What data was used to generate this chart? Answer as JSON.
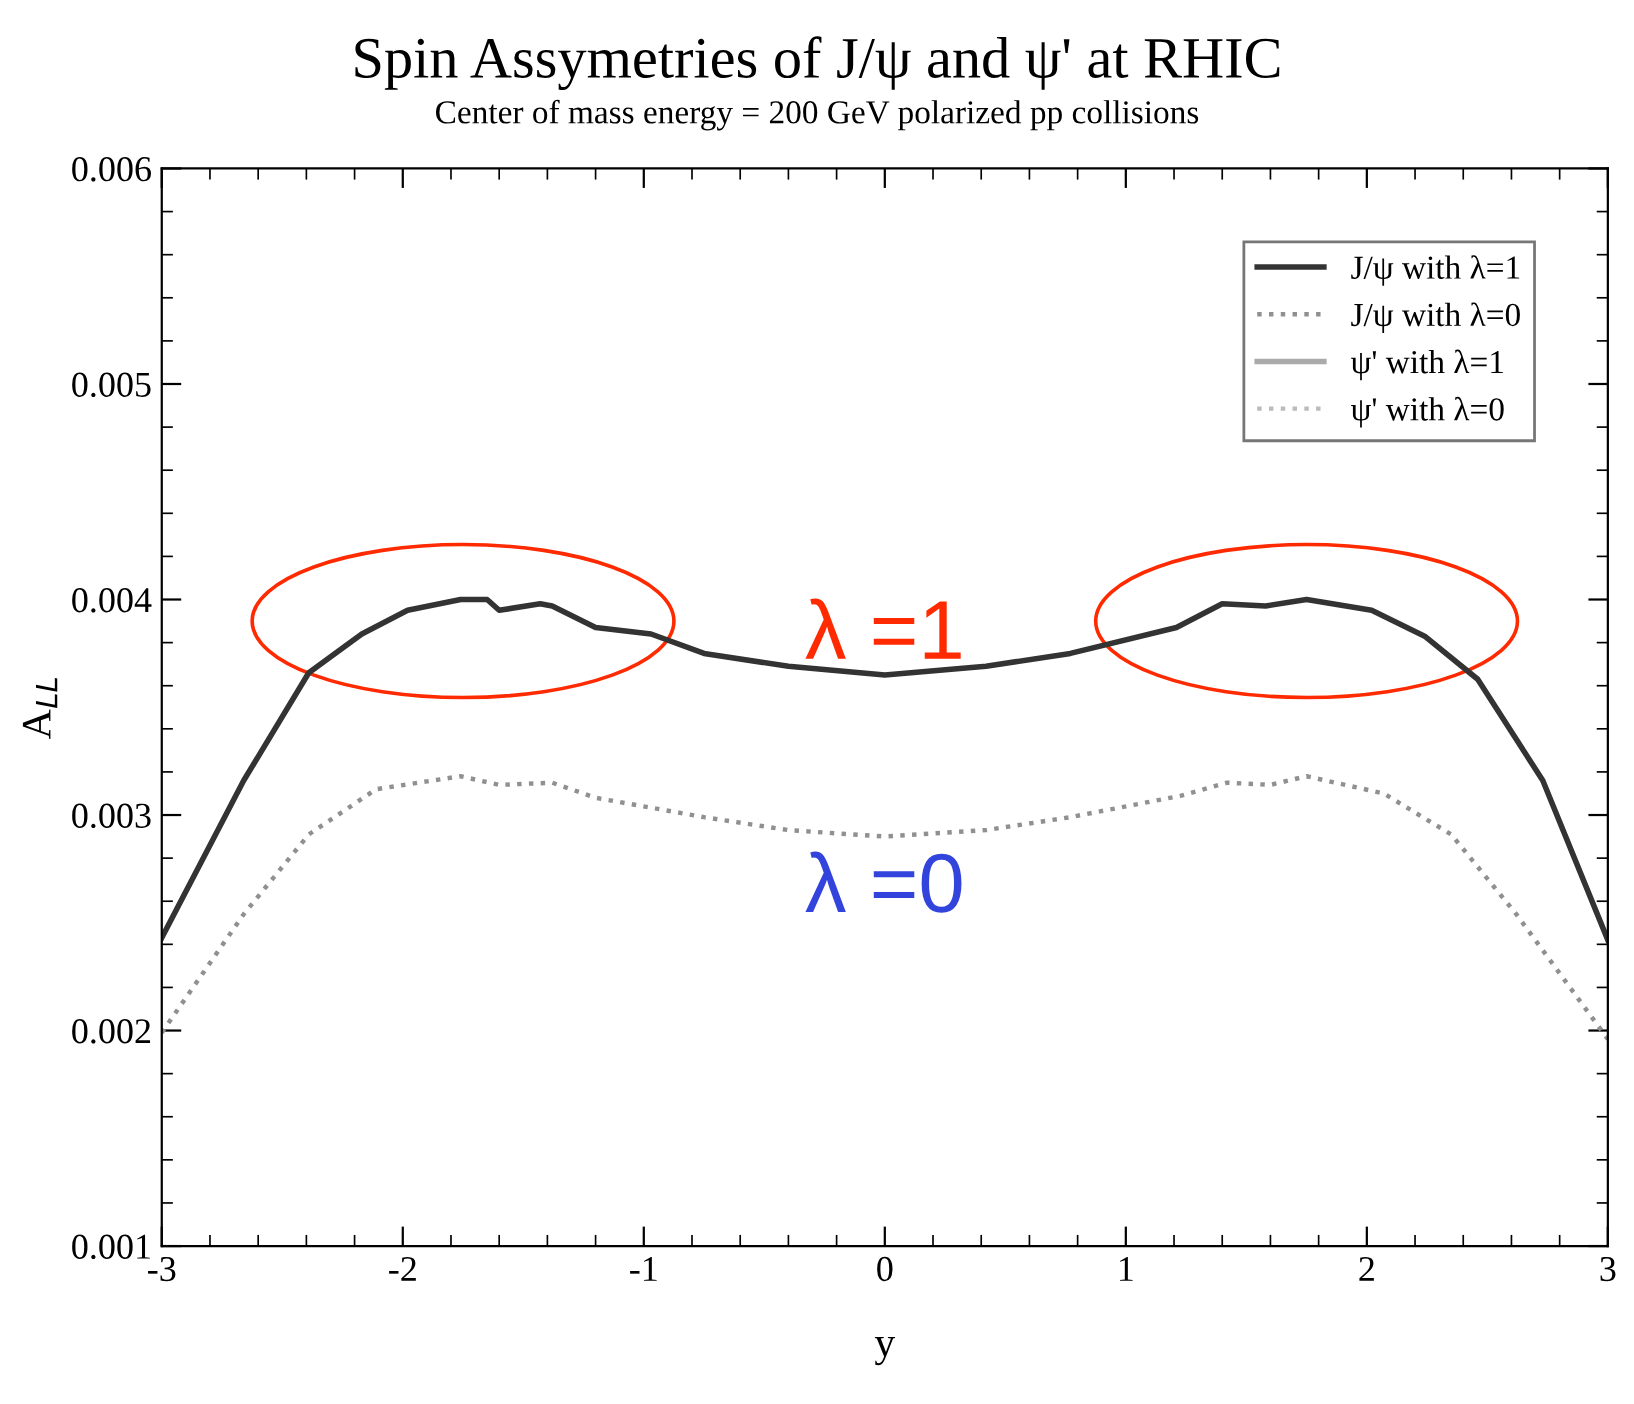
{
  "chart_data": {
    "type": "line",
    "title": "Spin Assymetries of J/ψ and ψ' at RHIC",
    "subtitle": "Center of mass energy = 200 GeV polarized pp collisions",
    "xlabel": "y",
    "ylabel": "A$_{LL}$",
    "xlim": [
      -3,
      3
    ],
    "ylim": [
      0.001,
      0.006
    ],
    "xticks": [
      -3,
      -2,
      -1,
      0,
      1,
      2,
      3
    ],
    "yticks": [
      0.001,
      0.002,
      0.003,
      0.004,
      0.005,
      0.006
    ],
    "grid": false,
    "legend": "top right",
    "annotations": [
      "λ =1",
      "λ =0"
    ],
    "series": [
      {
        "name": "J/ψ with λ=1",
        "color": "#333333",
        "line_style": "solid",
        "x": [
          -3,
          -2.66,
          -2.39,
          -2.17,
          -1.98,
          -1.76,
          -1.65,
          -1.6,
          -1.43,
          -1.38,
          -1.2,
          -0.97,
          -0.75,
          -0.4,
          0,
          0.42,
          0.77,
          1.21,
          1.4,
          1.58,
          1.75,
          2.02,
          2.24,
          2.46,
          2.73,
          3
        ],
        "values": [
          0.00243,
          0.00316,
          0.00366,
          0.00384,
          0.00395,
          0.004,
          0.004,
          0.00395,
          0.00398,
          0.00397,
          0.00387,
          0.00384,
          0.00375,
          0.00369,
          0.00365,
          0.00369,
          0.00375,
          0.00387,
          0.00398,
          0.00397,
          0.004,
          0.00395,
          0.00383,
          0.00363,
          0.00316,
          0.00242
        ]
      },
      {
        "name": "J/ψ with λ=0",
        "color": "#909090",
        "line_style": "dotted",
        "x": [
          -3,
          -2.66,
          -2.39,
          -2.11,
          -1.76,
          -1.6,
          -1.38,
          -1.2,
          -0.75,
          -0.4,
          0,
          0.42,
          0.77,
          1.23,
          1.42,
          1.6,
          1.75,
          2.07,
          2.35,
          2.62,
          3
        ],
        "values": [
          0.00199,
          0.00254,
          0.00291,
          0.00312,
          0.00318,
          0.00314,
          0.00315,
          0.00308,
          0.00299,
          0.00293,
          0.0029,
          0.00293,
          0.00299,
          0.00309,
          0.00315,
          0.00314,
          0.00318,
          0.0031,
          0.00291,
          0.00254,
          0.00196
        ]
      },
      {
        "name": "ψ' with λ=1",
        "color": "#aaaaaa",
        "line_style": "solid"
      },
      {
        "name": "ψ' with λ=0",
        "color": "#bbbbbb",
        "line_style": "dotted"
      }
    ]
  }
}
